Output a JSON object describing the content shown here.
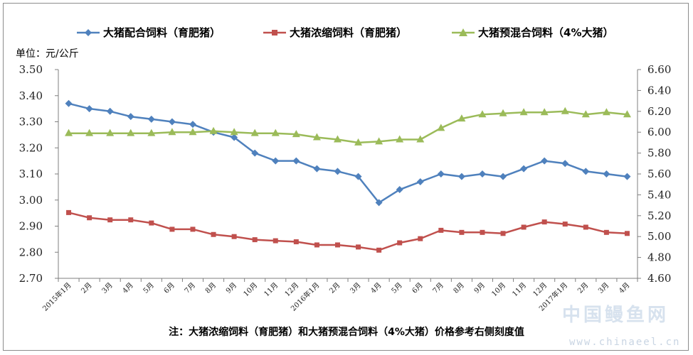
{
  "chart_data": {
    "type": "line",
    "unit_label": "单位：元/公斤",
    "note": "注：大猪浓缩饲料（育肥猪）和大猪预混合饲料（4%大猪）价格参考右侧刻度值",
    "watermark": {
      "cn": "中国鳗鱼网",
      "url": "www.chinaeel.cn"
    },
    "categories": [
      "2015年1月",
      "2月",
      "3月",
      "4月",
      "5月",
      "6月",
      "7月",
      "8月",
      "9月",
      "10月",
      "11月",
      "12月",
      "2016年1月",
      "2月",
      "3月",
      "4月",
      "5月",
      "6月",
      "7月",
      "8月",
      "9月",
      "10月",
      "11月",
      "12月",
      "2017年1月",
      "2月",
      "3月",
      "4月"
    ],
    "left_axis": {
      "min": 2.7,
      "max": 3.5,
      "ticks": [
        "2.70",
        "2.80",
        "2.90",
        "3.00",
        "3.10",
        "3.20",
        "3.30",
        "3.40",
        "3.50"
      ]
    },
    "right_axis": {
      "min": 4.6,
      "max": 6.6,
      "ticks": [
        "4.60",
        "4.80",
        "5.00",
        "5.20",
        "5.40",
        "5.60",
        "5.80",
        "6.00",
        "6.20",
        "6.40",
        "6.60"
      ]
    },
    "series": [
      {
        "name": "大猪配合饲料（育肥猪）",
        "axis": "left",
        "color": "#4f81bd",
        "marker": "diamond",
        "values": [
          3.37,
          3.35,
          3.34,
          3.32,
          3.31,
          3.3,
          3.29,
          3.26,
          3.24,
          3.18,
          3.15,
          3.15,
          3.12,
          3.11,
          3.09,
          2.99,
          3.04,
          3.07,
          3.1,
          3.09,
          3.1,
          3.09,
          3.12,
          3.15,
          3.14,
          3.11,
          3.1,
          3.09
        ]
      },
      {
        "name": "大猪浓缩饲料（育肥猪）",
        "axis": "right",
        "color": "#c0504d",
        "marker": "square",
        "values": [
          5.23,
          5.18,
          5.16,
          5.16,
          5.13,
          5.07,
          5.07,
          5.02,
          5.0,
          4.97,
          4.96,
          4.95,
          4.92,
          4.92,
          4.9,
          4.87,
          4.94,
          4.98,
          5.06,
          5.04,
          5.04,
          5.03,
          5.09,
          5.14,
          5.12,
          5.09,
          5.04,
          5.03
        ]
      },
      {
        "name": "大猪预混合饲料（4%大猪）",
        "axis": "right",
        "color": "#9bbb59",
        "marker": "triangle",
        "values": [
          5.99,
          5.99,
          5.99,
          5.99,
          5.99,
          6.0,
          6.0,
          6.01,
          6.0,
          5.99,
          5.99,
          5.98,
          5.95,
          5.93,
          5.9,
          5.91,
          5.93,
          5.93,
          6.04,
          6.13,
          6.17,
          6.18,
          6.19,
          6.19,
          6.2,
          6.17,
          6.19,
          6.17
        ]
      }
    ]
  }
}
